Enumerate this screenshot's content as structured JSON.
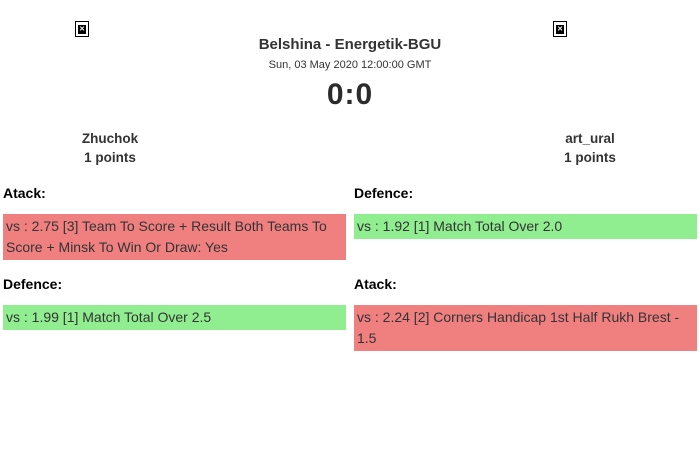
{
  "header": {
    "title": "Belshina - Energetik-BGU",
    "datetime": "Sun, 03 May 2020 12:00:00 GMT",
    "score": "0:0"
  },
  "icons": {
    "broken_image_glyph": "✕"
  },
  "players": {
    "home": {
      "name": "Zhuchok",
      "points": "1 points"
    },
    "away": {
      "name": "art_ural",
      "points": "1 points"
    }
  },
  "colors": {
    "win": "#90ee90",
    "lose": "#f08080"
  },
  "sections": [
    {
      "side": "home",
      "label": "Atack:",
      "text": "vs : 2.75 [3] Team To Score + Result Both Teams To Score + Minsk To Win Or Draw: Yes",
      "result": "lose"
    },
    {
      "side": "away",
      "label": "Defence:",
      "text": "vs : 1.92 [1] Match Total Over 2.0",
      "result": "win"
    },
    {
      "side": "home",
      "label": "Defence:",
      "text": "vs : 1.99 [1] Match Total Over 2.5",
      "result": "win"
    },
    {
      "side": "away",
      "label": "Atack:",
      "text": "vs : 2.24 [2] Corners Handicap 1st Half Rukh Brest - 1.5",
      "result": "lose"
    }
  ]
}
